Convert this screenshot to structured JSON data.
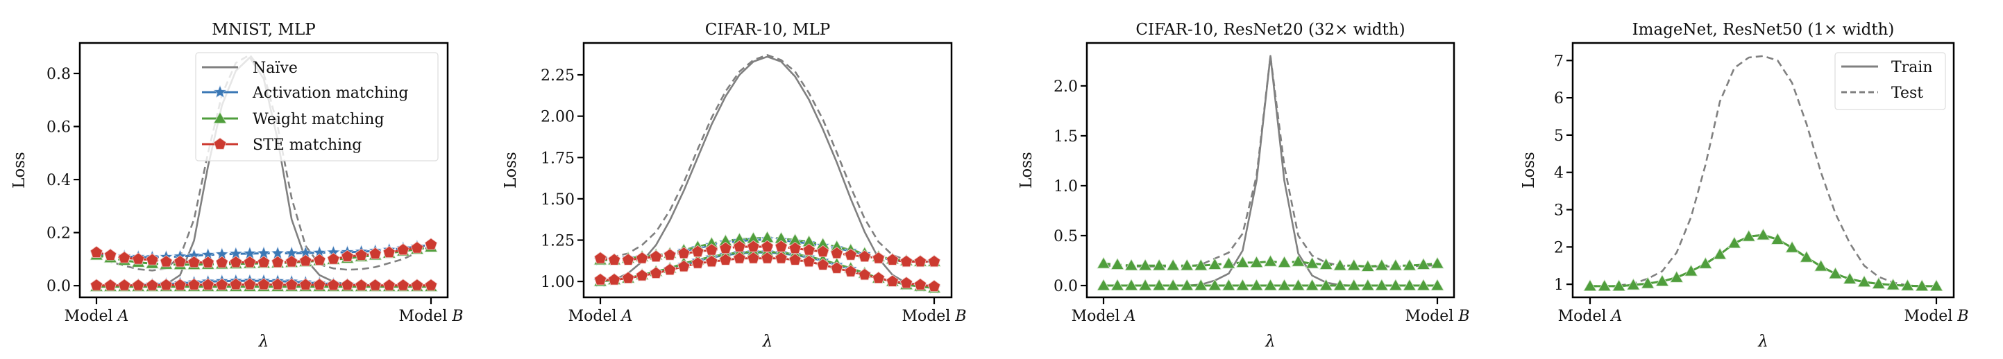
{
  "colors": {
    "naive": "#808080",
    "activation": "#3b78b5",
    "weight": "#4f9e3c",
    "ste": "#cc3a30"
  },
  "chart_data": [
    {
      "type": "line",
      "title": "MNIST, MLP",
      "xlabel": "λ",
      "ylabel": "Loss",
      "xticks": [
        "Model A",
        "Model B"
      ],
      "yticks": [
        "0.0",
        "0.2",
        "0.4",
        "0.6",
        "0.8"
      ],
      "ytick_values": [
        0,
        0.2,
        0.4,
        0.6,
        0.8
      ],
      "ylim": [
        -0.044,
        0.915
      ],
      "x": [
        0,
        0.0417,
        0.0833,
        0.125,
        0.1667,
        0.2083,
        0.25,
        0.2917,
        0.3333,
        0.375,
        0.4167,
        0.4583,
        0.5,
        0.5417,
        0.5833,
        0.625,
        0.6667,
        0.7083,
        0.75,
        0.7917,
        0.8333,
        0.875,
        0.9167,
        0.9583,
        1
      ],
      "legend": {
        "position": "upper right",
        "entries": [
          "Naïve",
          "Activation matching",
          "Weight matching",
          "STE matching"
        ]
      },
      "series": [
        {
          "method": "Naïve",
          "split": "Train",
          "color_key": "naive",
          "marker": "none",
          "values": [
            0,
            0,
            0,
            0,
            0,
            0.005,
            0.04,
            0.17,
            0.45,
            0.68,
            0.81,
            0.86,
            0.78,
            0.55,
            0.25,
            0.1,
            0.04,
            0.015,
            0.005,
            0,
            0,
            0,
            0,
            0,
            0
          ]
        },
        {
          "method": "Naïve",
          "split": "Test",
          "color_key": "naive",
          "marker": "none",
          "values": [
            0.12,
            0.09,
            0.075,
            0.062,
            0.057,
            0.065,
            0.11,
            0.25,
            0.5,
            0.72,
            0.84,
            0.87,
            0.8,
            0.6,
            0.33,
            0.15,
            0.08,
            0.065,
            0.06,
            0.062,
            0.07,
            0.085,
            0.1,
            0.125,
            0.15
          ]
        },
        {
          "method": "Activation matching",
          "split": "Train",
          "color_key": "activation",
          "marker": "star",
          "values": [
            0,
            0,
            0,
            0.002,
            0.004,
            0.006,
            0.009,
            0.012,
            0.015,
            0.017,
            0.018,
            0.018,
            0.018,
            0.017,
            0.015,
            0.012,
            0.009,
            0.006,
            0.004,
            0.002,
            0,
            0,
            0,
            0,
            0
          ]
        },
        {
          "method": "Activation matching",
          "split": "Test",
          "color_key": "activation",
          "marker": "star",
          "values": [
            0.12,
            0.115,
            0.11,
            0.108,
            0.107,
            0.108,
            0.11,
            0.113,
            0.116,
            0.118,
            0.12,
            0.121,
            0.122,
            0.122,
            0.122,
            0.123,
            0.124,
            0.125,
            0.126,
            0.128,
            0.131,
            0.135,
            0.141,
            0.147,
            0.154
          ]
        },
        {
          "method": "Weight matching",
          "split": "Train",
          "color_key": "weight",
          "marker": "triangle",
          "values": [
            -0.004,
            -0.004,
            -0.004,
            -0.004,
            -0.004,
            -0.004,
            -0.004,
            -0.004,
            -0.004,
            -0.004,
            -0.004,
            -0.004,
            -0.004,
            -0.004,
            -0.004,
            -0.004,
            -0.004,
            -0.004,
            -0.004,
            -0.004,
            -0.004,
            -0.004,
            -0.004,
            -0.004,
            -0.004
          ]
        },
        {
          "method": "Weight matching",
          "split": "Test",
          "color_key": "weight",
          "marker": "triangle",
          "values": [
            0.115,
            0.105,
            0.095,
            0.088,
            0.083,
            0.08,
            0.079,
            0.079,
            0.08,
            0.081,
            0.082,
            0.083,
            0.084,
            0.085,
            0.087,
            0.09,
            0.094,
            0.098,
            0.103,
            0.109,
            0.115,
            0.122,
            0.13,
            0.137,
            0.145
          ]
        },
        {
          "method": "STE matching",
          "split": "Train",
          "color_key": "ste",
          "marker": "pentagon",
          "values": [
            0.001,
            0.001,
            0.001,
            0.001,
            0.001,
            0.002,
            0.002,
            0.003,
            0.003,
            0.003,
            0.004,
            0.004,
            0.004,
            0.004,
            0.003,
            0.003,
            0.003,
            0.002,
            0.002,
            0.001,
            0.001,
            0.001,
            0.001,
            0.001,
            0.001
          ]
        },
        {
          "method": "STE matching",
          "split": "Test",
          "color_key": "ste",
          "marker": "pentagon",
          "values": [
            0.125,
            0.115,
            0.105,
            0.1,
            0.097,
            0.09,
            0.09,
            0.088,
            0.087,
            0.087,
            0.088,
            0.088,
            0.088,
            0.088,
            0.09,
            0.093,
            0.096,
            0.1,
            0.11,
            0.115,
            0.12,
            0.125,
            0.135,
            0.142,
            0.155
          ]
        }
      ]
    },
    {
      "type": "line",
      "title": "CIFAR-10, MLP",
      "xlabel": "λ",
      "ylabel": "Loss",
      "xticks": [
        "Model A",
        "Model B"
      ],
      "yticks": [
        "1.00",
        "1.25",
        "1.50",
        "1.75",
        "2.00",
        "2.25"
      ],
      "ytick_values": [
        1.0,
        1.25,
        1.5,
        1.75,
        2.0,
        2.25
      ],
      "ylim": [
        0.904,
        2.443
      ],
      "series": [
        {
          "method": "Naïve",
          "split": "Train",
          "color_key": "naive",
          "marker": "none",
          "values": [
            1.0,
            1.01,
            1.05,
            1.12,
            1.22,
            1.37,
            1.55,
            1.75,
            1.95,
            2.12,
            2.25,
            2.33,
            2.36,
            2.33,
            2.24,
            2.1,
            1.92,
            1.72,
            1.5,
            1.3,
            1.14,
            1.04,
            0.99,
            0.97,
            0.97
          ]
        },
        {
          "method": "Naïve",
          "split": "Test",
          "color_key": "naive",
          "marker": "none",
          "values": [
            1.14,
            1.15,
            1.17,
            1.22,
            1.3,
            1.43,
            1.6,
            1.8,
            1.99,
            2.15,
            2.27,
            2.34,
            2.37,
            2.34,
            2.27,
            2.14,
            1.98,
            1.78,
            1.57,
            1.38,
            1.24,
            1.16,
            1.13,
            1.12,
            1.12
          ]
        },
        {
          "method": "Activation matching",
          "split": "Train",
          "color_key": "activation",
          "marker": "star",
          "values": [
            1.0,
            1.01,
            1.02,
            1.035,
            1.055,
            1.075,
            1.1,
            1.125,
            1.145,
            1.16,
            1.17,
            1.175,
            1.175,
            1.17,
            1.16,
            1.145,
            1.125,
            1.1,
            1.075,
            1.045,
            1.02,
            1.0,
            0.98,
            0.97,
            0.96
          ]
        },
        {
          "method": "Activation matching",
          "split": "Test",
          "color_key": "activation",
          "marker": "star",
          "values": [
            1.13,
            1.13,
            1.14,
            1.145,
            1.155,
            1.165,
            1.185,
            1.2,
            1.22,
            1.235,
            1.245,
            1.25,
            1.255,
            1.25,
            1.24,
            1.23,
            1.215,
            1.2,
            1.185,
            1.165,
            1.145,
            1.13,
            1.12,
            1.12,
            1.12
          ]
        },
        {
          "method": "Weight matching",
          "split": "Train",
          "color_key": "weight",
          "marker": "triangle",
          "values": [
            1.0,
            1.01,
            1.02,
            1.04,
            1.06,
            1.08,
            1.11,
            1.13,
            1.15,
            1.165,
            1.175,
            1.18,
            1.18,
            1.175,
            1.165,
            1.15,
            1.13,
            1.105,
            1.08,
            1.05,
            1.02,
            1.0,
            0.98,
            0.97,
            0.96
          ]
        },
        {
          "method": "Weight matching",
          "split": "Test",
          "color_key": "weight",
          "marker": "triangle",
          "values": [
            1.13,
            1.13,
            1.14,
            1.15,
            1.16,
            1.17,
            1.19,
            1.21,
            1.23,
            1.245,
            1.255,
            1.26,
            1.265,
            1.26,
            1.25,
            1.24,
            1.225,
            1.21,
            1.19,
            1.17,
            1.15,
            1.135,
            1.125,
            1.12,
            1.12
          ]
        },
        {
          "method": "STE matching",
          "split": "Train",
          "color_key": "ste",
          "marker": "pentagon",
          "values": [
            1.01,
            1.01,
            1.02,
            1.035,
            1.05,
            1.07,
            1.09,
            1.11,
            1.12,
            1.13,
            1.14,
            1.14,
            1.14,
            1.14,
            1.13,
            1.12,
            1.1,
            1.08,
            1.06,
            1.04,
            1.02,
            1.0,
            0.99,
            0.98,
            0.97
          ]
        },
        {
          "method": "STE matching",
          "split": "Test",
          "color_key": "ste",
          "marker": "pentagon",
          "values": [
            1.14,
            1.13,
            1.13,
            1.14,
            1.15,
            1.16,
            1.17,
            1.18,
            1.19,
            1.2,
            1.21,
            1.21,
            1.21,
            1.21,
            1.2,
            1.19,
            1.18,
            1.17,
            1.16,
            1.15,
            1.14,
            1.13,
            1.12,
            1.12,
            1.12
          ]
        }
      ]
    },
    {
      "type": "line",
      "title": "CIFAR-10, ResNet20 (32× width)",
      "xlabel": "λ",
      "ylabel": "Loss",
      "xticks": [
        "Model A",
        "Model B"
      ],
      "yticks": [
        "0.0",
        "0.5",
        "1.0",
        "1.5",
        "2.0"
      ],
      "ytick_values": [
        0,
        0.5,
        1.0,
        1.5,
        2.0
      ],
      "ylim": [
        -0.118,
        2.43
      ],
      "series": [
        {
          "method": "Naïve",
          "split": "Train",
          "color_key": "naive",
          "marker": "none",
          "values": [
            0,
            0,
            0,
            0,
            0,
            0,
            0,
            0.01,
            0.05,
            0.12,
            0.35,
            1.05,
            2.3,
            1.05,
            0.32,
            0.1,
            0.03,
            0.005,
            0,
            0,
            0,
            0,
            0,
            0,
            0
          ]
        },
        {
          "method": "Naïve",
          "split": "Test",
          "color_key": "naive",
          "marker": "none",
          "values": [
            0.2,
            0.195,
            0.19,
            0.19,
            0.19,
            0.19,
            0.19,
            0.21,
            0.27,
            0.33,
            0.52,
            1.1,
            2.3,
            1.2,
            0.5,
            0.3,
            0.23,
            0.2,
            0.19,
            0.19,
            0.19,
            0.19,
            0.19,
            0.2,
            0.2
          ]
        },
        {
          "method": "Weight matching",
          "split": "Train",
          "color_key": "weight",
          "marker": "triangle",
          "values": [
            0,
            0,
            0,
            0,
            0,
            0,
            0,
            0,
            0,
            0,
            0,
            0,
            0,
            0,
            0,
            0,
            0,
            0,
            0,
            0,
            0,
            0,
            0,
            0,
            0
          ]
        },
        {
          "method": "Weight matching",
          "split": "Test",
          "color_key": "weight",
          "marker": "triangle",
          "values": [
            0.22,
            0.21,
            0.2,
            0.2,
            0.2,
            0.2,
            0.2,
            0.2,
            0.21,
            0.22,
            0.23,
            0.23,
            0.24,
            0.23,
            0.24,
            0.22,
            0.21,
            0.2,
            0.2,
            0.19,
            0.2,
            0.2,
            0.2,
            0.21,
            0.22
          ]
        }
      ]
    },
    {
      "type": "line",
      "title": "ImageNet, ResNet50 (1× width)",
      "xlabel": "λ",
      "ylabel": "Loss",
      "xticks": [
        "Model A",
        "Model B"
      ],
      "yticks": [
        "1",
        "2",
        "3",
        "4",
        "5",
        "6",
        "7"
      ],
      "ytick_values": [
        1,
        2,
        3,
        4,
        5,
        6,
        7
      ],
      "ylim": [
        0.65,
        7.47
      ],
      "legend": {
        "position": "upper right",
        "entries": [
          "Train",
          "Test"
        ]
      },
      "series": [
        {
          "method": "Naïve",
          "split": "Test",
          "color_key": "naive",
          "marker": "none",
          "values": [
            null,
            null,
            0.97,
            1.02,
            1.15,
            1.35,
            1.85,
            2.8,
            4.2,
            5.9,
            6.8,
            7.08,
            7.12,
            7.0,
            6.4,
            5.3,
            4.0,
            2.9,
            2.1,
            1.5,
            1.2,
            1.05,
            0.97,
            0.95,
            0.95
          ]
        },
        {
          "method": "Weight matching",
          "split": "Train",
          "color_key": "weight",
          "marker": "none",
          "values": [
            0.95,
            0.95,
            0.95,
            0.98,
            1.02,
            1.08,
            1.18,
            1.35,
            1.55,
            1.8,
            2.1,
            2.28,
            2.32,
            2.2,
            1.98,
            1.72,
            1.48,
            1.28,
            1.14,
            1.06,
            1.01,
            0.98,
            0.96,
            0.95,
            0.95
          ]
        },
        {
          "method": "Weight matching",
          "split": "Test",
          "color_key": "weight",
          "marker": "triangle",
          "values": [
            0.95,
            0.95,
            0.95,
            0.98,
            1.02,
            1.08,
            1.18,
            1.35,
            1.55,
            1.8,
            2.1,
            2.28,
            2.32,
            2.2,
            1.98,
            1.72,
            1.48,
            1.28,
            1.14,
            1.06,
            1.01,
            0.98,
            0.96,
            0.95,
            0.95
          ]
        }
      ]
    }
  ]
}
